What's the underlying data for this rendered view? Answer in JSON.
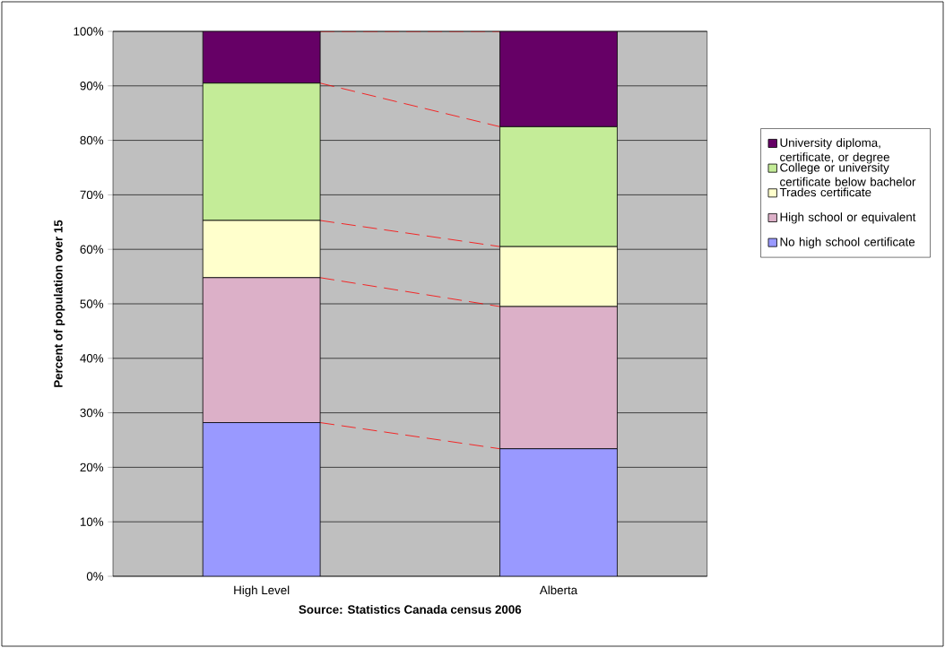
{
  "chart_data": {
    "type": "bar",
    "stacked": true,
    "categories": [
      "High Level",
      "Alberta"
    ],
    "series": [
      {
        "name": "No high school certificate",
        "color": "#9999ff",
        "values": [
          28.2,
          23.4
        ]
      },
      {
        "name": "High school or equivalent",
        "color": "#dcb0c8",
        "values": [
          26.6,
          26.1
        ]
      },
      {
        "name": "Trades certificate",
        "color": "#ffffcc",
        "values": [
          10.5,
          11.0
        ]
      },
      {
        "name": "College or university certificate below bachelor",
        "color": "#c4ec98",
        "values": [
          25.2,
          22.0
        ]
      },
      {
        "name": "University diploma, certificate, or degree",
        "color": "#660066",
        "values": [
          9.5,
          17.5
        ]
      }
    ],
    "ylim": [
      0,
      100
    ],
    "yticks": [
      {
        "value": 0,
        "label": "0%"
      },
      {
        "value": 10,
        "label": "10%"
      },
      {
        "value": 20,
        "label": "20%"
      },
      {
        "value": 30,
        "label": "30%"
      },
      {
        "value": 40,
        "label": "40%"
      },
      {
        "value": 50,
        "label": "50%"
      },
      {
        "value": 60,
        "label": "60%"
      },
      {
        "value": 70,
        "label": "70%"
      },
      {
        "value": 80,
        "label": "80%"
      },
      {
        "value": 90,
        "label": "90%"
      },
      {
        "value": 100,
        "label": "100%"
      }
    ],
    "xlabel": "Source: Statistics Canada census 2006",
    "ylabel": "Percent of population over 15",
    "grid": "y",
    "legend": "right"
  }
}
